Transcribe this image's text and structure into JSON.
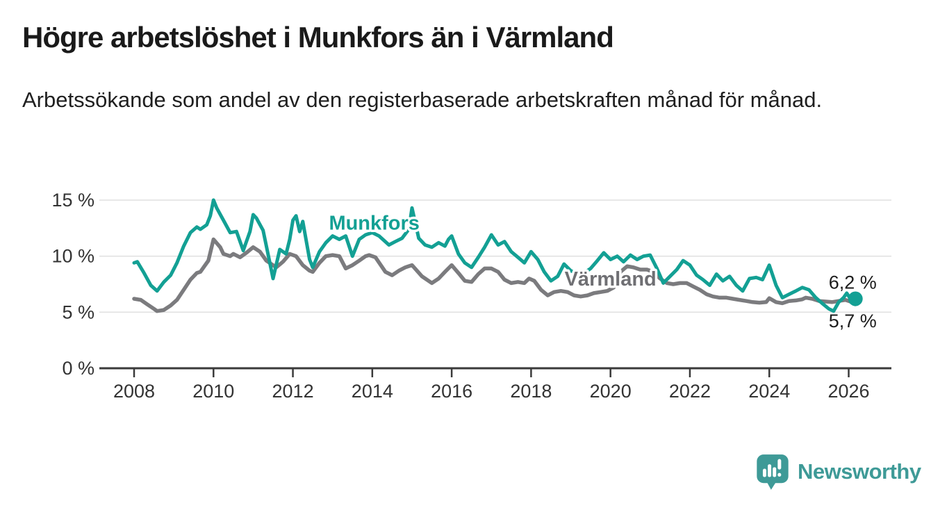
{
  "header": {
    "title": "Högre arbetslöshet i Munkfors än i Värmland",
    "subtitle": "Arbetssökande som andel av den registerbaserade arbetskraften månad för månad."
  },
  "chart_data": {
    "type": "line",
    "title": "Högre arbetslöshet i Munkfors än i Värmland",
    "subtitle": "Arbetssökande som andel av den registerbaserade arbetskraften månad för månad.",
    "unit": "%",
    "grid": "horizontal",
    "legend_position": "inline-series-labels",
    "x_axis": {
      "ticks": [
        2008,
        2010,
        2012,
        2014,
        2016,
        2018,
        2020,
        2022,
        2024,
        2026
      ],
      "tick_labels": [
        "2008",
        "2010",
        "2012",
        "2014",
        "2016",
        "2018",
        "2020",
        "2022",
        "2024",
        "2026"
      ],
      "range": [
        2007.1,
        2027.1
      ]
    },
    "y_axis": {
      "ticks": [
        0,
        5,
        10,
        15
      ],
      "tick_labels": [
        "0 %",
        "5 %",
        "10 %",
        "15 %"
      ],
      "range": [
        0,
        15.6
      ]
    },
    "colors": {
      "munkfors": "#13a094",
      "varmland": "#7b7b7e",
      "axis": "#3a3a3a",
      "gridline": "#e1e1e1",
      "tick_text": "#333333",
      "annotation_text": "#1c1c1c"
    },
    "series": [
      {
        "id": "varmland",
        "name": "Värmland",
        "color": "#7b7b7e",
        "label_color": "#6f6f73",
        "width": 5.5,
        "end_dot": false,
        "label": {
          "text": "Värmland",
          "year": 2020.0,
          "value": 8.0
        },
        "points": [
          [
            2008.0,
            6.2
          ],
          [
            2008.17,
            6.1
          ],
          [
            2008.33,
            5.7
          ],
          [
            2008.5,
            5.3
          ],
          [
            2008.58,
            5.1
          ],
          [
            2008.75,
            5.2
          ],
          [
            2008.92,
            5.6
          ],
          [
            2009.08,
            6.1
          ],
          [
            2009.25,
            7.0
          ],
          [
            2009.42,
            7.9
          ],
          [
            2009.58,
            8.5
          ],
          [
            2009.67,
            8.6
          ],
          [
            2009.75,
            9.0
          ],
          [
            2009.87,
            9.6
          ],
          [
            2010.0,
            11.5
          ],
          [
            2010.17,
            10.8
          ],
          [
            2010.25,
            10.2
          ],
          [
            2010.42,
            10.0
          ],
          [
            2010.5,
            10.2
          ],
          [
            2010.67,
            9.9
          ],
          [
            2010.83,
            10.3
          ],
          [
            2011.0,
            10.8
          ],
          [
            2011.17,
            10.4
          ],
          [
            2011.33,
            9.6
          ],
          [
            2011.58,
            9.0
          ],
          [
            2011.75,
            9.5
          ],
          [
            2011.92,
            10.2
          ],
          [
            2012.08,
            10.0
          ],
          [
            2012.25,
            9.2
          ],
          [
            2012.42,
            8.7
          ],
          [
            2012.5,
            8.6
          ],
          [
            2012.67,
            9.4
          ],
          [
            2012.83,
            10.0
          ],
          [
            2013.0,
            10.1
          ],
          [
            2013.17,
            10.0
          ],
          [
            2013.33,
            8.9
          ],
          [
            2013.5,
            9.2
          ],
          [
            2013.67,
            9.6
          ],
          [
            2013.83,
            10.0
          ],
          [
            2013.92,
            10.1
          ],
          [
            2014.08,
            9.9
          ],
          [
            2014.33,
            8.6
          ],
          [
            2014.5,
            8.3
          ],
          [
            2014.67,
            8.7
          ],
          [
            2014.83,
            9.0
          ],
          [
            2015.0,
            9.2
          ],
          [
            2015.25,
            8.2
          ],
          [
            2015.5,
            7.6
          ],
          [
            2015.67,
            8.0
          ],
          [
            2015.83,
            8.6
          ],
          [
            2016.0,
            9.2
          ],
          [
            2016.17,
            8.5
          ],
          [
            2016.33,
            7.8
          ],
          [
            2016.5,
            7.7
          ],
          [
            2016.67,
            8.4
          ],
          [
            2016.83,
            8.9
          ],
          [
            2017.0,
            8.9
          ],
          [
            2017.17,
            8.6
          ],
          [
            2017.33,
            7.9
          ],
          [
            2017.5,
            7.6
          ],
          [
            2017.67,
            7.7
          ],
          [
            2017.83,
            7.6
          ],
          [
            2017.95,
            8.0
          ],
          [
            2018.08,
            7.8
          ],
          [
            2018.25,
            7.0
          ],
          [
            2018.42,
            6.5
          ],
          [
            2018.58,
            6.8
          ],
          [
            2018.75,
            6.9
          ],
          [
            2018.92,
            6.8
          ],
          [
            2019.08,
            6.5
          ],
          [
            2019.25,
            6.4
          ],
          [
            2019.42,
            6.5
          ],
          [
            2019.58,
            6.7
          ],
          [
            2019.75,
            6.8
          ],
          [
            2019.92,
            6.9
          ],
          [
            2020.08,
            7.2
          ],
          [
            2020.25,
            8.6
          ],
          [
            2020.42,
            9.1
          ],
          [
            2020.58,
            9.0
          ],
          [
            2020.75,
            8.8
          ],
          [
            2020.92,
            8.8
          ],
          [
            2021.08,
            8.6
          ],
          [
            2021.25,
            8.0
          ],
          [
            2021.42,
            7.6
          ],
          [
            2021.58,
            7.5
          ],
          [
            2021.75,
            7.6
          ],
          [
            2021.92,
            7.6
          ],
          [
            2022.08,
            7.3
          ],
          [
            2022.25,
            7.0
          ],
          [
            2022.42,
            6.6
          ],
          [
            2022.58,
            6.4
          ],
          [
            2022.75,
            6.3
          ],
          [
            2022.92,
            6.3
          ],
          [
            2023.08,
            6.2
          ],
          [
            2023.25,
            6.1
          ],
          [
            2023.42,
            6.0
          ],
          [
            2023.58,
            5.9
          ],
          [
            2023.75,
            5.85
          ],
          [
            2023.92,
            5.9
          ],
          [
            2024.0,
            6.25
          ],
          [
            2024.17,
            5.9
          ],
          [
            2024.33,
            5.8
          ],
          [
            2024.5,
            6.0
          ],
          [
            2024.67,
            6.05
          ],
          [
            2024.83,
            6.15
          ],
          [
            2024.92,
            6.3
          ],
          [
            2025.08,
            6.2
          ],
          [
            2025.25,
            6.0
          ],
          [
            2025.42,
            5.95
          ],
          [
            2025.58,
            5.9
          ],
          [
            2025.75,
            6.0
          ],
          [
            2025.92,
            6.1
          ],
          [
            2026.08,
            5.9
          ],
          [
            2026.17,
            5.7
          ]
        ]
      },
      {
        "id": "munkfors",
        "name": "Munkfors",
        "color": "#13a094",
        "label_color": "#13a094",
        "width": 5,
        "end_dot": true,
        "label": {
          "text": "Munkfors",
          "year": 2014.05,
          "value": 13.0
        },
        "points": [
          [
            2008.0,
            9.4
          ],
          [
            2008.08,
            9.5
          ],
          [
            2008.25,
            8.5
          ],
          [
            2008.42,
            7.4
          ],
          [
            2008.58,
            6.9
          ],
          [
            2008.75,
            7.7
          ],
          [
            2008.92,
            8.3
          ],
          [
            2009.08,
            9.4
          ],
          [
            2009.25,
            10.9
          ],
          [
            2009.42,
            12.1
          ],
          [
            2009.58,
            12.6
          ],
          [
            2009.67,
            12.4
          ],
          [
            2009.83,
            12.8
          ],
          [
            2009.92,
            13.6
          ],
          [
            2010.0,
            15.0
          ],
          [
            2010.08,
            14.3
          ],
          [
            2010.25,
            13.2
          ],
          [
            2010.42,
            12.1
          ],
          [
            2010.58,
            12.2
          ],
          [
            2010.75,
            10.5
          ],
          [
            2010.92,
            12.2
          ],
          [
            2011.0,
            13.7
          ],
          [
            2011.08,
            13.4
          ],
          [
            2011.25,
            12.3
          ],
          [
            2011.42,
            9.4
          ],
          [
            2011.5,
            8.0
          ],
          [
            2011.67,
            10.6
          ],
          [
            2011.83,
            10.2
          ],
          [
            2011.92,
            11.5
          ],
          [
            2012.0,
            13.2
          ],
          [
            2012.08,
            13.6
          ],
          [
            2012.17,
            12.2
          ],
          [
            2012.25,
            13.1
          ],
          [
            2012.42,
            9.7
          ],
          [
            2012.5,
            9.0
          ],
          [
            2012.67,
            10.4
          ],
          [
            2012.83,
            11.2
          ],
          [
            2013.0,
            11.8
          ],
          [
            2013.17,
            11.5
          ],
          [
            2013.33,
            11.8
          ],
          [
            2013.5,
            10.0
          ],
          [
            2013.67,
            11.5
          ],
          [
            2013.83,
            11.9
          ],
          [
            2014.0,
            12.1
          ],
          [
            2014.17,
            11.8
          ],
          [
            2014.42,
            11.0
          ],
          [
            2014.58,
            11.3
          ],
          [
            2014.75,
            11.6
          ],
          [
            2014.92,
            12.4
          ],
          [
            2015.0,
            14.3
          ],
          [
            2015.17,
            11.6
          ],
          [
            2015.33,
            11.0
          ],
          [
            2015.5,
            10.8
          ],
          [
            2015.67,
            11.2
          ],
          [
            2015.83,
            10.9
          ],
          [
            2015.92,
            11.5
          ],
          [
            2016.0,
            11.8
          ],
          [
            2016.17,
            10.2
          ],
          [
            2016.33,
            9.4
          ],
          [
            2016.5,
            9.0
          ],
          [
            2016.67,
            9.9
          ],
          [
            2016.83,
            10.8
          ],
          [
            2017.0,
            11.9
          ],
          [
            2017.17,
            11.0
          ],
          [
            2017.33,
            11.3
          ],
          [
            2017.5,
            10.4
          ],
          [
            2017.67,
            9.9
          ],
          [
            2017.83,
            9.4
          ],
          [
            2018.0,
            10.4
          ],
          [
            2018.17,
            9.7
          ],
          [
            2018.33,
            8.6
          ],
          [
            2018.5,
            7.8
          ],
          [
            2018.67,
            8.2
          ],
          [
            2018.83,
            9.3
          ],
          [
            2019.0,
            8.7
          ],
          [
            2019.25,
            8.3
          ],
          [
            2019.5,
            8.9
          ],
          [
            2019.67,
            9.6
          ],
          [
            2019.83,
            10.3
          ],
          [
            2020.0,
            9.7
          ],
          [
            2020.17,
            10.0
          ],
          [
            2020.33,
            9.5
          ],
          [
            2020.5,
            10.1
          ],
          [
            2020.67,
            9.7
          ],
          [
            2020.83,
            10.0
          ],
          [
            2021.0,
            10.1
          ],
          [
            2021.17,
            8.9
          ],
          [
            2021.33,
            7.6
          ],
          [
            2021.5,
            8.2
          ],
          [
            2021.67,
            8.8
          ],
          [
            2021.83,
            9.6
          ],
          [
            2022.0,
            9.2
          ],
          [
            2022.17,
            8.3
          ],
          [
            2022.33,
            7.9
          ],
          [
            2022.5,
            7.4
          ],
          [
            2022.67,
            8.4
          ],
          [
            2022.83,
            7.8
          ],
          [
            2023.0,
            8.2
          ],
          [
            2023.17,
            7.4
          ],
          [
            2023.33,
            6.9
          ],
          [
            2023.5,
            8.0
          ],
          [
            2023.67,
            8.1
          ],
          [
            2023.83,
            7.9
          ],
          [
            2024.0,
            9.2
          ],
          [
            2024.17,
            7.4
          ],
          [
            2024.33,
            6.3
          ],
          [
            2024.5,
            6.6
          ],
          [
            2024.67,
            6.9
          ],
          [
            2024.83,
            7.2
          ],
          [
            2025.0,
            7.0
          ],
          [
            2025.17,
            6.3
          ],
          [
            2025.33,
            5.8
          ],
          [
            2025.5,
            5.3
          ],
          [
            2025.62,
            5.1
          ],
          [
            2025.75,
            5.9
          ],
          [
            2025.87,
            6.3
          ],
          [
            2025.95,
            6.7
          ],
          [
            2026.08,
            6.0
          ],
          [
            2026.17,
            6.2
          ]
        ]
      }
    ],
    "annotations": [
      {
        "id": "munkfors-latest",
        "text": "6,2 %",
        "year": 2026.1,
        "value": 7.1
      },
      {
        "id": "varmland-latest",
        "text": "5,7 %",
        "year": 2026.1,
        "value": 3.65
      }
    ]
  },
  "branding": {
    "logo_text": "Newsworthy",
    "logo_color": "#3e9a97"
  }
}
